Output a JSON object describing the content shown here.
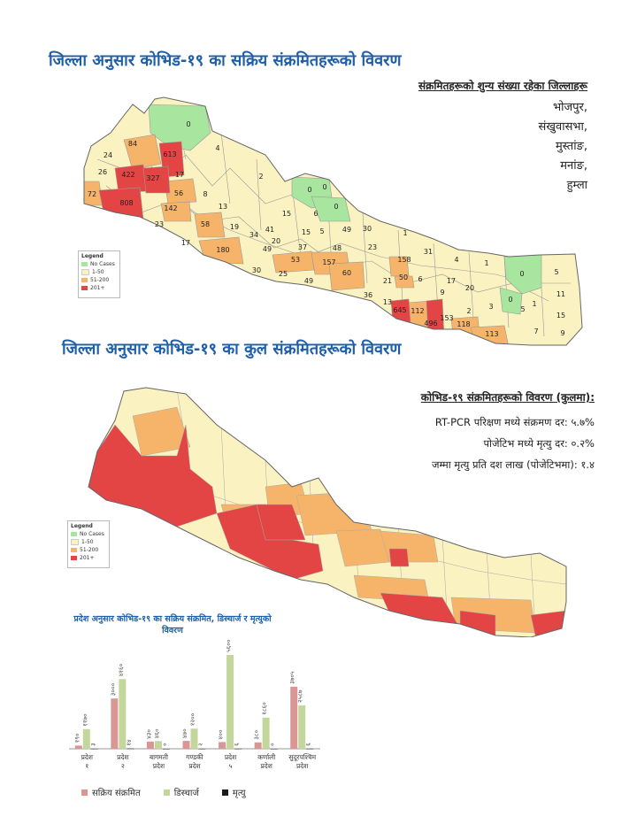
{
  "map1": {
    "title": "जिल्ला अनुसार कोभिड-१९ का सक्रिय संक्रमितहरूको विवरण",
    "zero_heading": "संक्रमितहरूको शुन्य संख्या रहेका जिल्लाहरू",
    "zero_districts": [
      "भोजपुर,",
      "संखुवासभा,",
      "मुस्तांङ,",
      "मनांङ,",
      "हुम्ला"
    ],
    "district_labels": [
      "0",
      "84",
      "613",
      "24",
      "26",
      "422",
      "327",
      "72",
      "808",
      "17",
      "56",
      "142",
      "23",
      "17",
      "58",
      "180",
      "0",
      "4",
      "2",
      "8",
      "13",
      "19",
      "34",
      "49",
      "30",
      "20",
      "41",
      "15",
      "37",
      "25",
      "0",
      "0",
      "6",
      "15",
      "5",
      "49",
      "30",
      "53",
      "157",
      "48",
      "60",
      "49",
      "23",
      "1",
      "158",
      "31",
      "4",
      "1",
      "0",
      "5",
      "21",
      "50",
      "6",
      "17",
      "20",
      "36",
      "13",
      "645",
      "112",
      "496",
      "153",
      "118",
      "113",
      "9",
      "2",
      "3",
      "0",
      "5",
      "1",
      "11",
      "15",
      "7",
      "9"
    ],
    "legend": {
      "title": "Legend",
      "items": [
        "No Cases",
        "1-50",
        "51-200",
        "201+"
      ],
      "colors": [
        "#a8e6a0",
        "#faf2c0",
        "#f6b46a",
        "#e34545"
      ]
    }
  },
  "map2": {
    "title": "जिल्ला अनुसार कोभिड-१९ का कुल संक्रमितहरूको विवरण",
    "stats_heading": "कोभिड-१९ संक्रमितहरूको विवरण (कुलमा):",
    "stats": [
      "RT-PCR परिक्षण मध्ये संक्रमण दर: ५.७%",
      "पोजेटिभ मध्ये मृत्यु दर: ०.२%",
      "जम्मा मृत्यु प्रति दश लाख (पोजेटिभमा): १.४"
    ],
    "legend": {
      "title": "Legend",
      "items": [
        "No Cases",
        "1-50",
        "51-200",
        "201+"
      ],
      "colors": [
        "#a8e6a0",
        "#faf2c0",
        "#f6b46a",
        "#e34545"
      ]
    }
  },
  "chart_data": {
    "type": "bar",
    "title": "प्रदेश अनुसार कोभिड-१९ का सक्रिय संक्रमित, डिस्चार्ज र मृत्युको विवरण",
    "categories": [
      "प्रदेश १",
      "प्रदेश २",
      "बागमती प्रदेश",
      "गण्डकी प्रदेश",
      "प्रदेश ५",
      "कर्णाली प्रदेश",
      "सुदूरपश्चिम प्रदेश"
    ],
    "series": [
      {
        "name": "सक्रिय संक्रमित",
        "color": "#d99694",
        "values": [
          190,
          3000,
          430,
          470,
          400,
          380,
          3705
        ]
      },
      {
        "name": "डिस्चार्ज",
        "color": "#c3d69b",
        "values": [
          1170,
          4160,
          460,
          1200,
          5600,
          1860,
          2587
        ]
      },
      {
        "name": "मृत्यु",
        "color": "#1a1a1a",
        "values": [
          3,
          14,
          0,
          2,
          6,
          0,
          6
        ]
      }
    ],
    "value_labels": {
      "सक्रिय संक्रमित": [
        "१९०",
        "३०००",
        "४३०",
        "४७०",
        "४००",
        "३८०",
        "३७०५"
      ],
      "डिस्चार्ज": [
        "११७०",
        "४१६०",
        "४६०",
        "१२००",
        "५६००",
        "१८६०",
        "२५८७"
      ],
      "मृत्यु": [
        "३",
        "१४",
        "०",
        "२",
        "६",
        "०",
        "६"
      ]
    },
    "ylim": [
      0,
      5600
    ],
    "legend_position": "bottom"
  }
}
